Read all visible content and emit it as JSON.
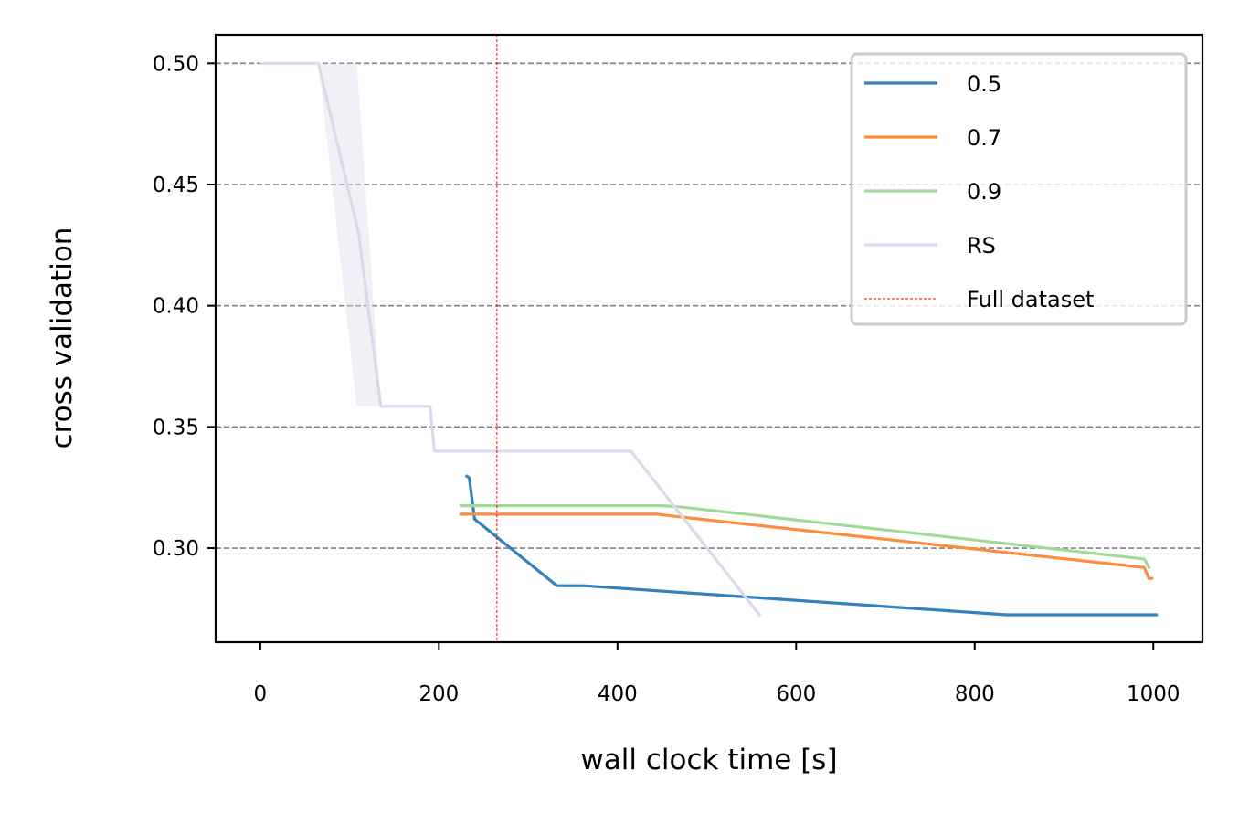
{
  "chart_data": {
    "type": "line",
    "xlabel": "wall clock time [s]",
    "ylabel": "cross validation",
    "xlim": [
      -50,
      1055
    ],
    "ylim": [
      0.2612,
      0.5118
    ],
    "xticks": [
      0,
      200,
      400,
      600,
      800,
      1000
    ],
    "xtick_labels": [
      "0",
      "200",
      "400",
      "600",
      "800",
      "1000"
    ],
    "yticks": [
      0.3,
      0.35,
      0.4,
      0.45,
      0.5
    ],
    "ytick_labels": [
      "0.30",
      "0.35",
      "0.40",
      "0.45",
      "0.50"
    ],
    "grid": "horizontal dashed",
    "legend_position": "top-right",
    "series": [
      {
        "name": "0.5",
        "color": "#3182bd",
        "x": [
          230,
          234,
          240,
          332,
          362,
          835,
          1005
        ],
        "y": [
          0.33,
          0.329,
          0.312,
          0.2845,
          0.2845,
          0.2725,
          0.2725
        ]
      },
      {
        "name": "0.7",
        "color": "#fd8d3c",
        "x": [
          223,
          445,
          455,
          990,
          995,
          1000
        ],
        "y": [
          0.314,
          0.314,
          0.3135,
          0.292,
          0.2875,
          0.2875
        ]
      },
      {
        "name": "0.9",
        "color": "#a1d99b",
        "x": [
          223,
          450,
          470,
          990,
          996
        ],
        "y": [
          0.3175,
          0.3175,
          0.317,
          0.2955,
          0.2915
        ]
      },
      {
        "name": "RS",
        "color": "#dadaeb",
        "x": [
          0,
          65,
          110,
          135,
          190,
          195,
          415,
          560
        ],
        "y": [
          0.5,
          0.5,
          0.43,
          0.3585,
          0.3585,
          0.34,
          0.34,
          0.272
        ],
        "band": {
          "x": [
            0,
            65,
            108,
            135,
            190,
            195,
            415,
            560
          ],
          "lower": [
            0.5,
            0.5,
            0.3585,
            0.3585,
            0.3585,
            0.34,
            0.34,
            0.272
          ],
          "upper": [
            0.5,
            0.5,
            0.5,
            0.3585,
            0.3585,
            0.34,
            0.34,
            0.272
          ]
        }
      }
    ],
    "vline": {
      "name": "Full dataset",
      "x": 265,
      "color": "#ff0000"
    }
  }
}
